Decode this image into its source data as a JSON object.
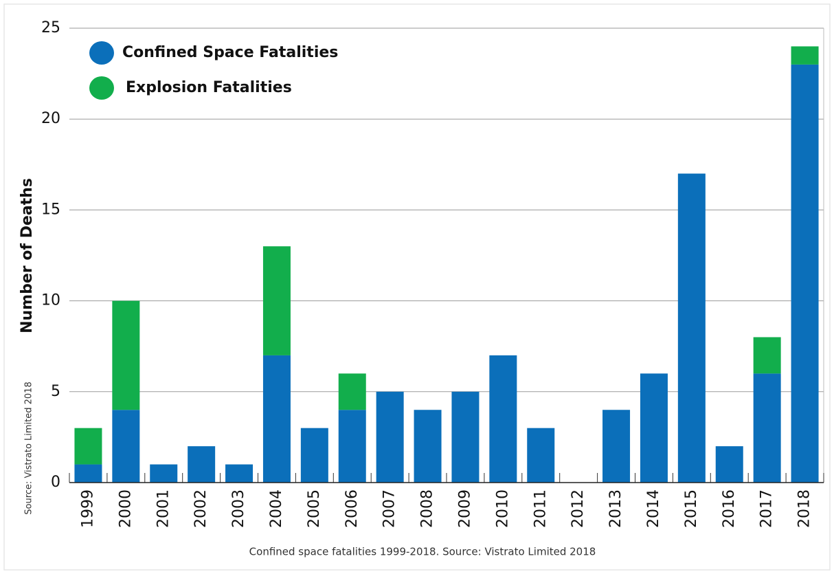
{
  "chart_data": {
    "type": "stacked-bar",
    "y_label": "Number of Deaths",
    "side_note": "Source: Vistrato Limited 2018",
    "caption": "Confined space fatalities 1999-2018. Source: Vistrato Limited 2018",
    "categories": [
      "1999",
      "2000",
      "2001",
      "2002",
      "2003",
      "2004",
      "2005",
      "2006",
      "2007",
      "2008",
      "2009",
      "2010",
      "2011",
      "2012",
      "2013",
      "2014",
      "2015",
      "2016",
      "2017",
      "2018"
    ],
    "series": [
      {
        "name": "Confined Space Fatalities",
        "color": "#0b6fba",
        "values": [
          1,
          4,
          1,
          2,
          1,
          7,
          3,
          4,
          5,
          4,
          5,
          7,
          3,
          0,
          4,
          6,
          17,
          2,
          6,
          23
        ]
      },
      {
        "name": "Explosion Fatalities",
        "color": "#12ae4c",
        "values": [
          2,
          6,
          0,
          0,
          0,
          6,
          0,
          2,
          0,
          0,
          0,
          0,
          0,
          0,
          0,
          0,
          0,
          0,
          2,
          1
        ]
      }
    ],
    "ylim": [
      0,
      25
    ],
    "yticks": [
      0,
      5,
      10,
      15,
      20,
      25
    ],
    "grid": true
  }
}
